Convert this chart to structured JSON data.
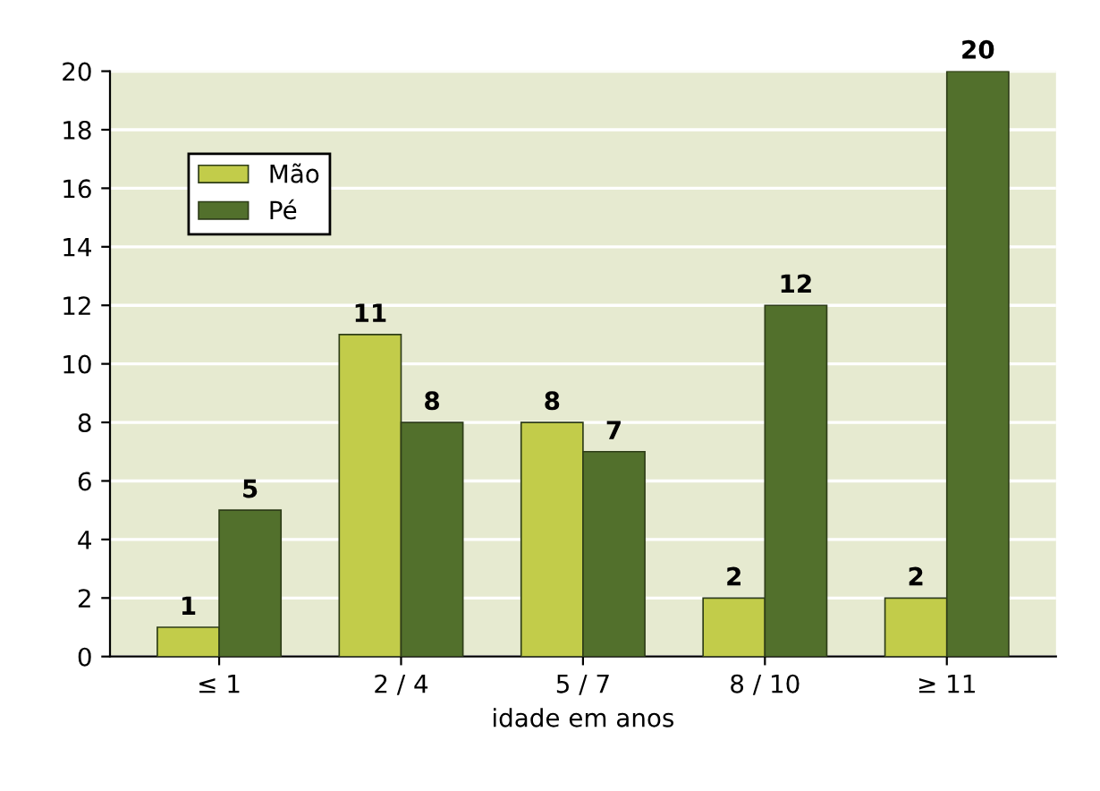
{
  "chart_data": {
    "type": "bar",
    "xlabel": "idade em anos",
    "categories": [
      "≤ 1",
      "2 / 4",
      "5 / 7",
      "8 / 10",
      "≥ 11"
    ],
    "series": [
      {
        "name": "Mão",
        "color": "#c2cc4a",
        "values": [
          1,
          11,
          8,
          2,
          2
        ]
      },
      {
        "name": "Pé",
        "color": "#52702c",
        "values": [
          5,
          8,
          7,
          12,
          20
        ]
      }
    ],
    "ylim": [
      0,
      20
    ],
    "yticks": [
      0,
      2,
      4,
      6,
      8,
      10,
      12,
      14,
      16,
      18,
      20
    ],
    "grid": "y",
    "legend": "top left",
    "data_labels": true
  }
}
